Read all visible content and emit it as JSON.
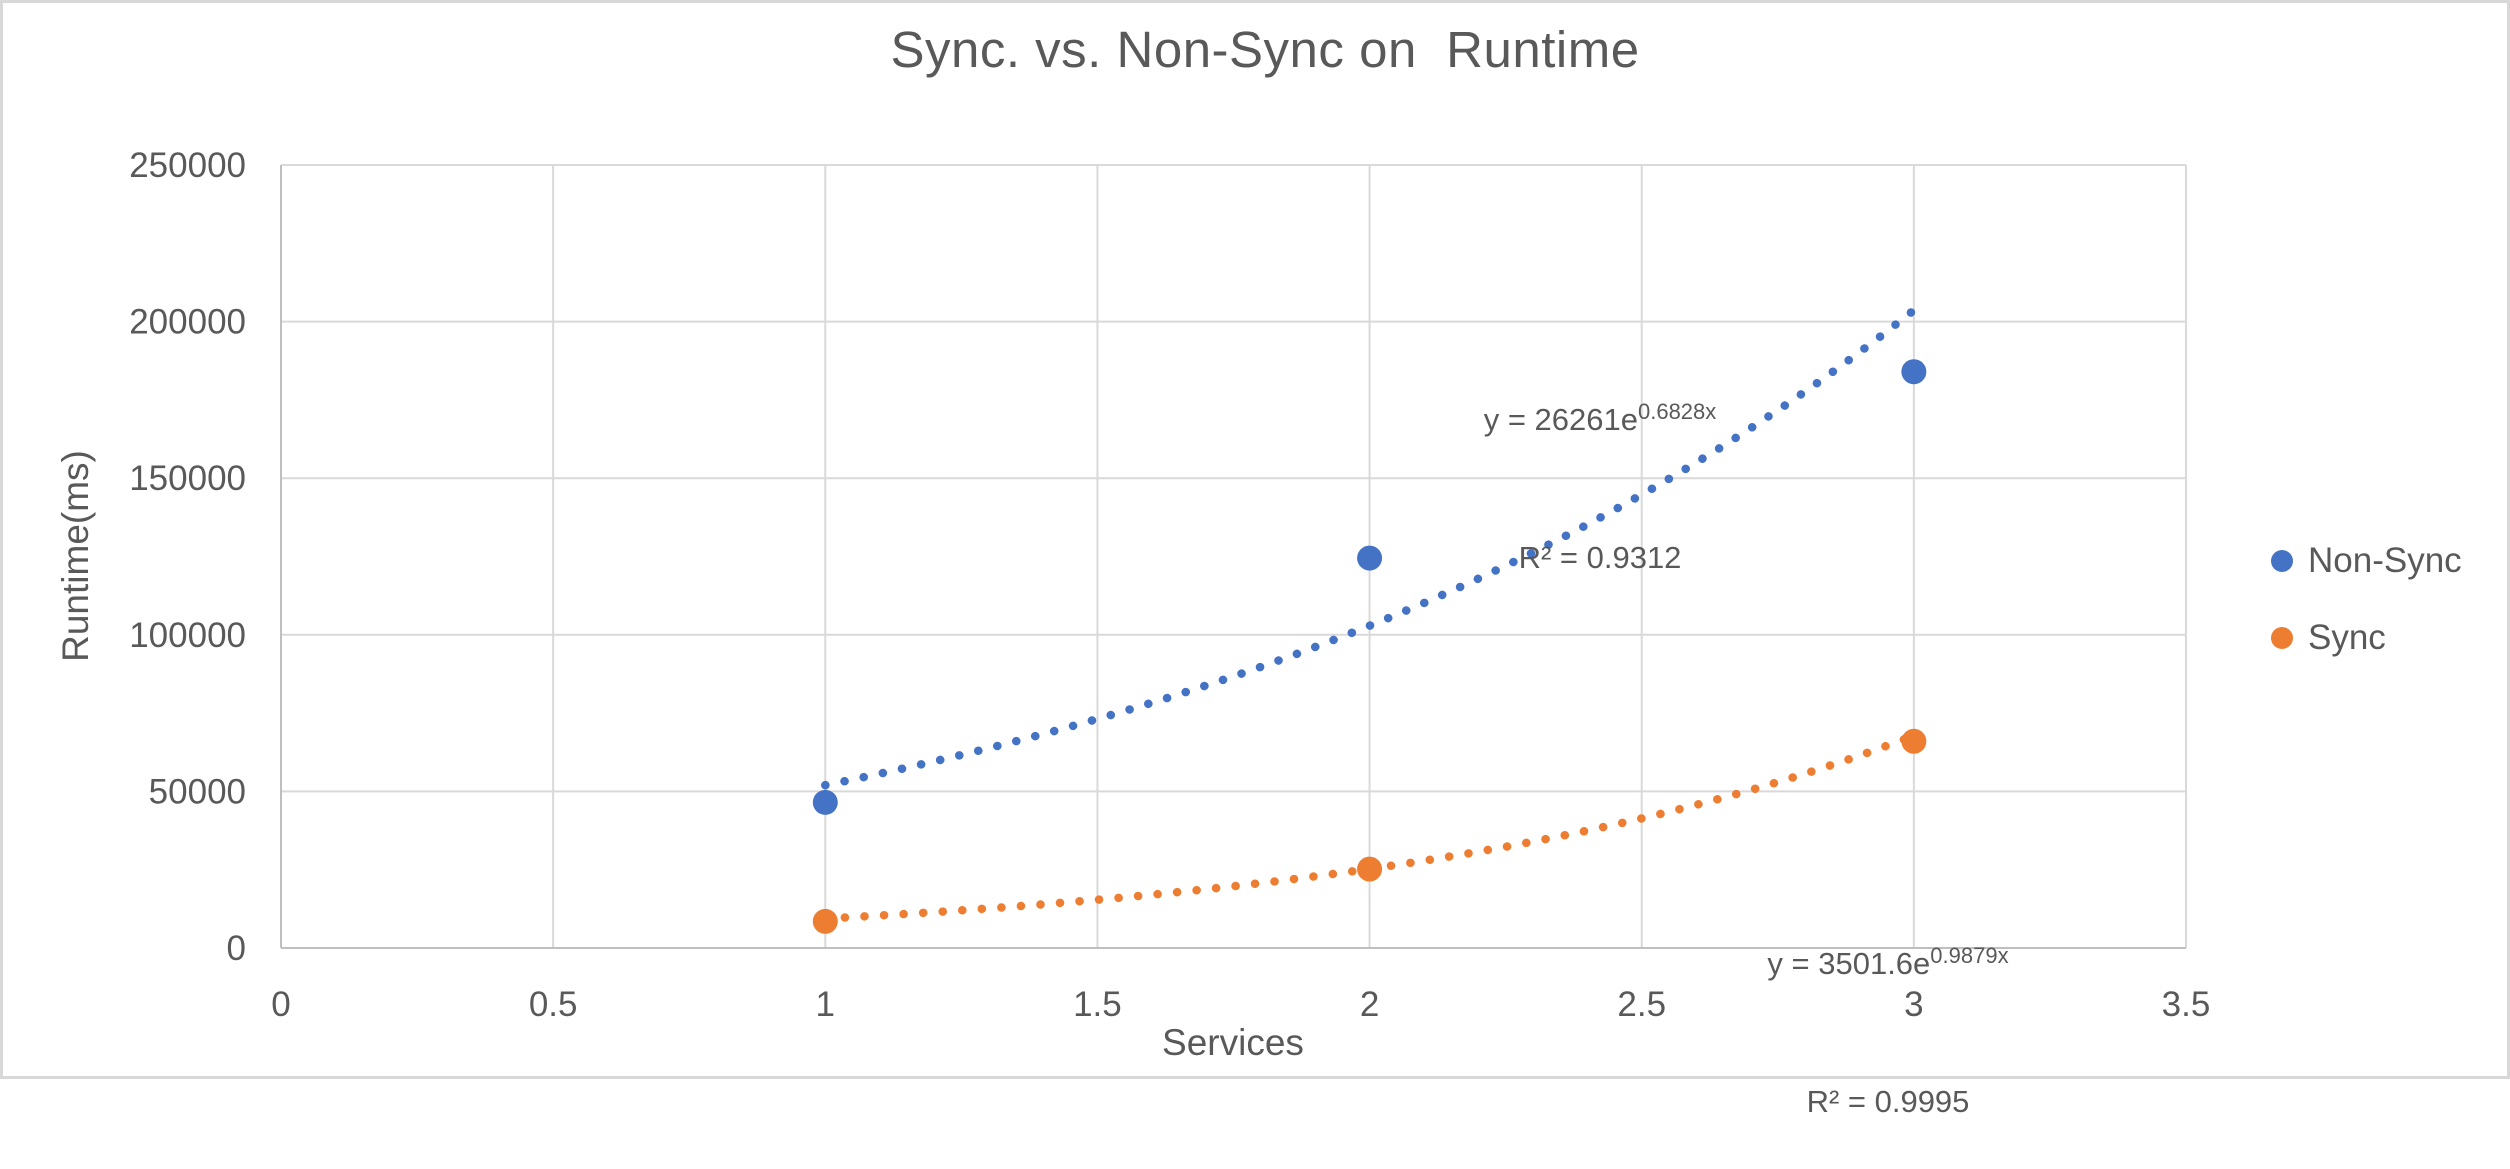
{
  "chart_data": {
    "type": "scatter",
    "title": "Sync. vs. Non-Sync on  Runtime",
    "xlabel": "Services",
    "ylabel": "Runtime(ms)",
    "xlim": [
      0,
      3.5
    ],
    "ylim": [
      0,
      250000
    ],
    "x_ticks": [
      0,
      0.5,
      1,
      1.5,
      2,
      2.5,
      3,
      3.5
    ],
    "x_tick_labels": [
      "0",
      "0.5",
      "1",
      "1.5",
      "2",
      "2.5",
      "3",
      "3.5"
    ],
    "y_ticks": [
      0,
      50000,
      100000,
      150000,
      200000,
      250000
    ],
    "y_tick_labels": [
      "0",
      "50000",
      "100000",
      "150000",
      "200000",
      "250000"
    ],
    "grid": true,
    "legend_position": "right",
    "x": [
      1,
      2,
      3
    ],
    "series": [
      {
        "name": "Non-Sync",
        "color": "#4472C4",
        "values": [
          46500,
          124500,
          184000
        ],
        "trendline": {
          "type": "exponential",
          "a": 26261,
          "b": 0.6828,
          "x_start": 1,
          "x_end": 3.0,
          "prefix": "y = 26261e",
          "exponent": "0.6828x",
          "r2": "R² = 0.9312"
        }
      },
      {
        "name": "Sync",
        "color": "#ED7D31",
        "values": [
          8500,
          25200,
          66000
        ],
        "trendline": {
          "type": "exponential",
          "a": 3501.6,
          "b": 0.9879,
          "x_start": 1,
          "x_end": 3.0,
          "prefix": "y = 3501.6e",
          "exponent": "0.9879x",
          "r2": "R² = 0.9995"
        }
      }
    ],
    "text_color": "#595959",
    "gridline_color": "#D9D9D9",
    "axis_color": "#BFBFBF"
  }
}
